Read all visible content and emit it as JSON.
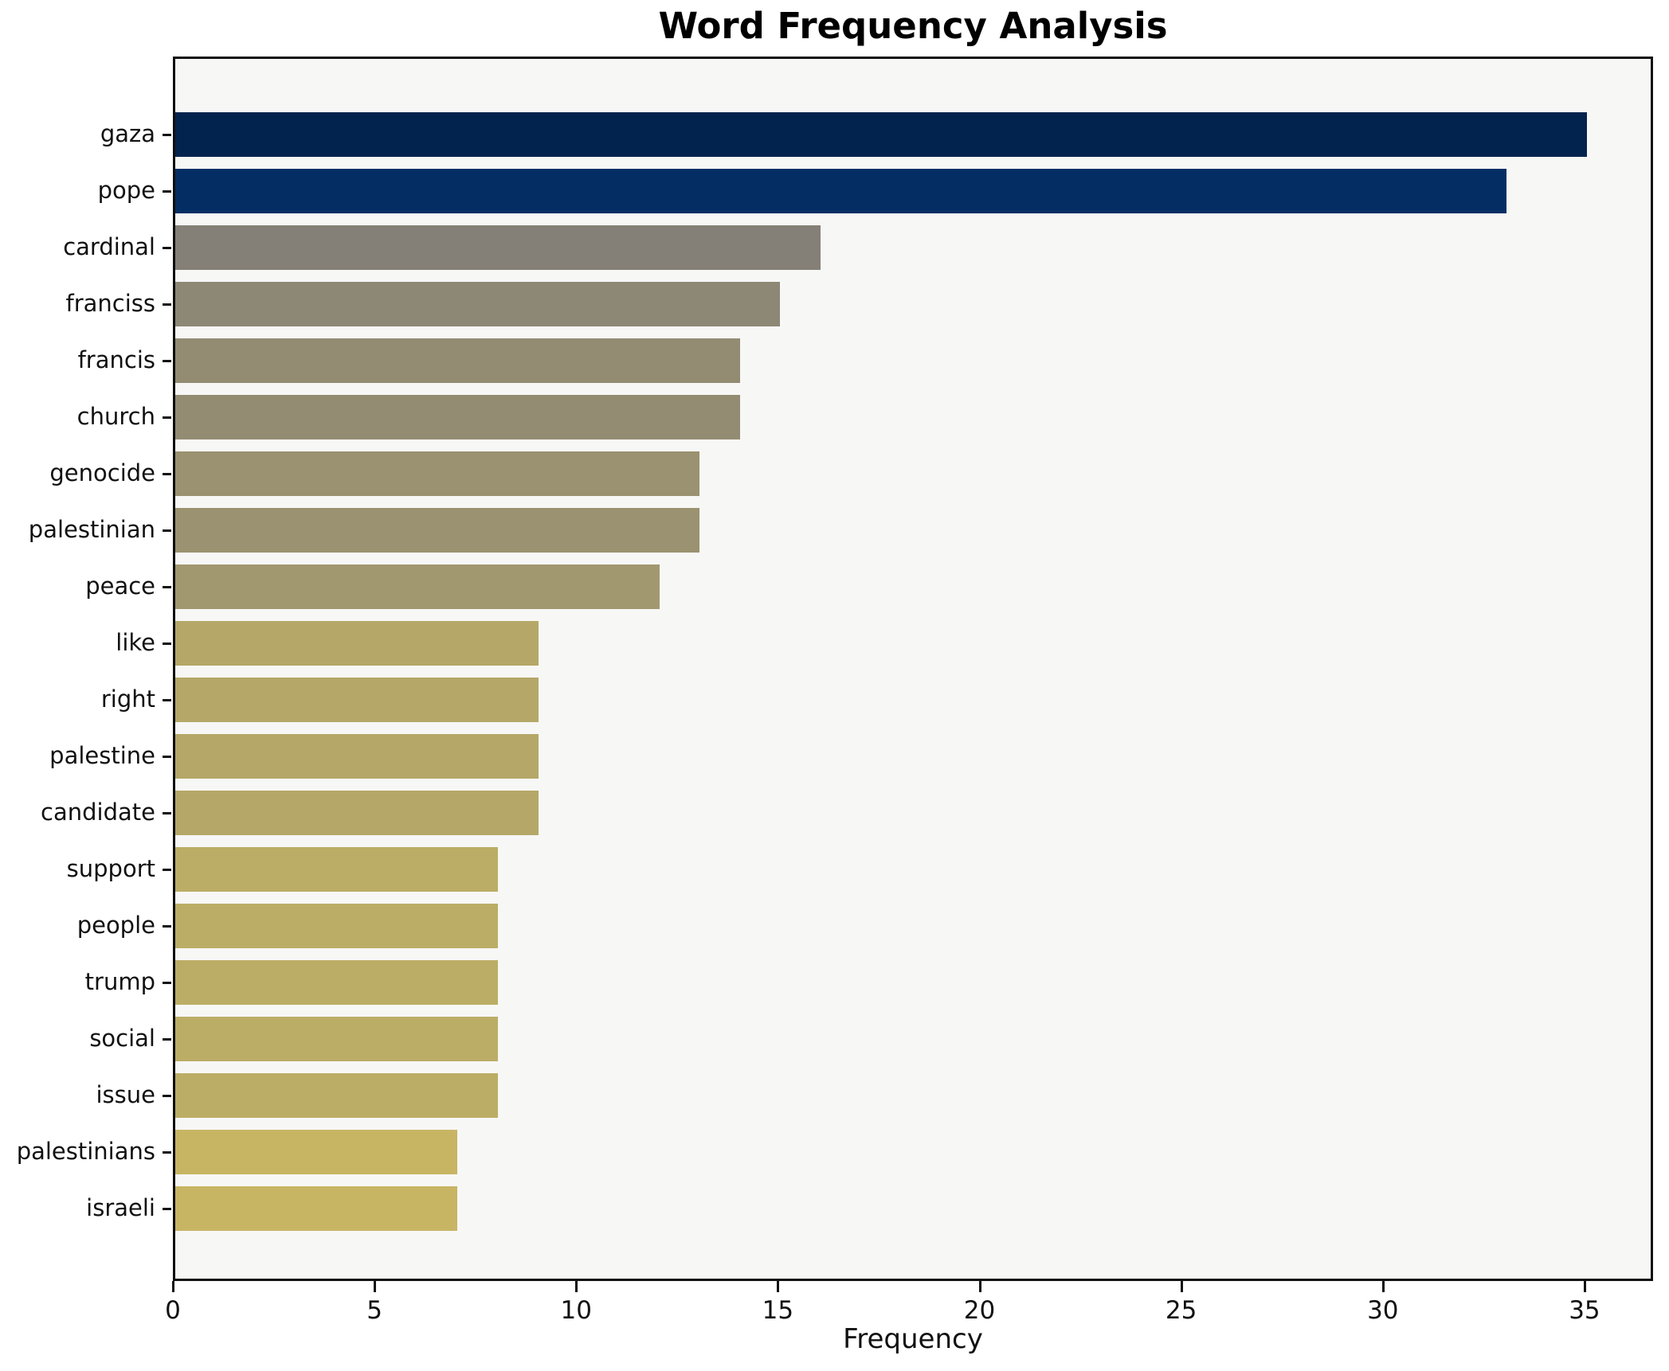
{
  "figure": {
    "background": "#ffffff",
    "plot_background": "#f7f7f6",
    "spine_color": "#0f0f0f",
    "text_color": "#111111"
  },
  "chart_data": {
    "type": "bar",
    "orientation": "horizontal",
    "title": "Word Frequency Analysis",
    "xlabel": "Frequency",
    "ylabel": "",
    "grid": false,
    "legend": null,
    "xlim": [
      0,
      36.7
    ],
    "xticks": [
      0,
      5,
      10,
      15,
      20,
      25,
      30,
      35
    ],
    "categories": [
      "gaza",
      "pope",
      "cardinal",
      "franciss",
      "francis",
      "church",
      "genocide",
      "palestinian",
      "peace",
      "like",
      "right",
      "palestine",
      "candidate",
      "support",
      "people",
      "trump",
      "social",
      "issue",
      "palestinians",
      "israeli"
    ],
    "values": [
      35,
      33,
      16,
      15,
      14,
      14,
      13,
      13,
      12,
      9,
      9,
      9,
      9,
      8,
      8,
      8,
      8,
      8,
      7,
      7
    ],
    "bar_colors": [
      "#03234f",
      "#042e63",
      "#858077",
      "#8d8775",
      "#938c73",
      "#938c73",
      "#9a9270",
      "#9a9270",
      "#a19870",
      "#b5a768",
      "#b5a768",
      "#b5a768",
      "#b5a768",
      "#bcad66",
      "#bcad66",
      "#bcad66",
      "#bcad66",
      "#bcad66",
      "#c8b564",
      "#c8b564"
    ]
  }
}
